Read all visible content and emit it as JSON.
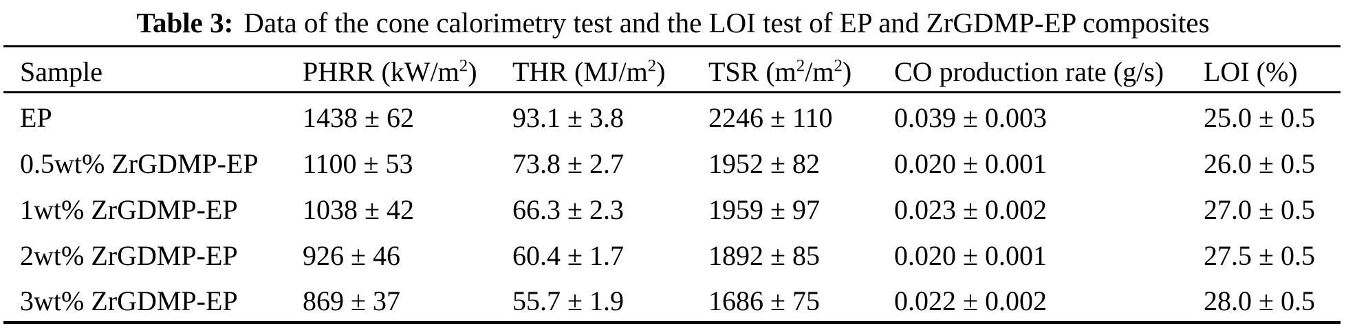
{
  "title": {
    "label": "Table 3:",
    "text": "Data of the cone calorimetry test and the LOI test of EP and ZrGDMP-EP composites"
  },
  "table": {
    "headers": {
      "sample": "Sample",
      "phrr": [
        "PHRR (kW/m",
        "2",
        ")"
      ],
      "thr": [
        "THR (MJ/m",
        "2",
        ")"
      ],
      "tsr": [
        "TSR (m",
        "2",
        "/m",
        "2",
        ")"
      ],
      "co_rate": "CO production rate (g/s)",
      "loi": "LOI (%)"
    },
    "rows": [
      {
        "sample": "EP",
        "phrr": "1438 ± 62",
        "thr": "93.1 ± 3.8",
        "tsr": "2246 ± 110",
        "co_rate": "0.039 ± 0.003",
        "loi": "25.0 ± 0.5"
      },
      {
        "sample": "0.5wt% ZrGDMP-EP",
        "phrr": "1100 ± 53",
        "thr": "73.8 ± 2.7",
        "tsr": "1952 ± 82",
        "co_rate": "0.020 ± 0.001",
        "loi": "26.0 ± 0.5"
      },
      {
        "sample": "1wt% ZrGDMP-EP",
        "phrr": "1038 ± 42",
        "thr": "66.3 ± 2.3",
        "tsr": "1959 ± 97",
        "co_rate": "0.023 ± 0.002",
        "loi": "27.0 ± 0.5"
      },
      {
        "sample": "2wt% ZrGDMP-EP",
        "phrr": "926 ± 46",
        "thr": "60.4 ± 1.7",
        "tsr": "1892 ± 85",
        "co_rate": "0.020 ± 0.001",
        "loi": "27.5 ± 0.5"
      },
      {
        "sample": "3wt% ZrGDMP-EP",
        "phrr": "869 ± 37",
        "thr": "55.7 ± 1.9",
        "tsr": "1686 ± 75",
        "co_rate": "0.022 ± 0.002",
        "loi": "28.0 ± 0.5"
      }
    ]
  }
}
